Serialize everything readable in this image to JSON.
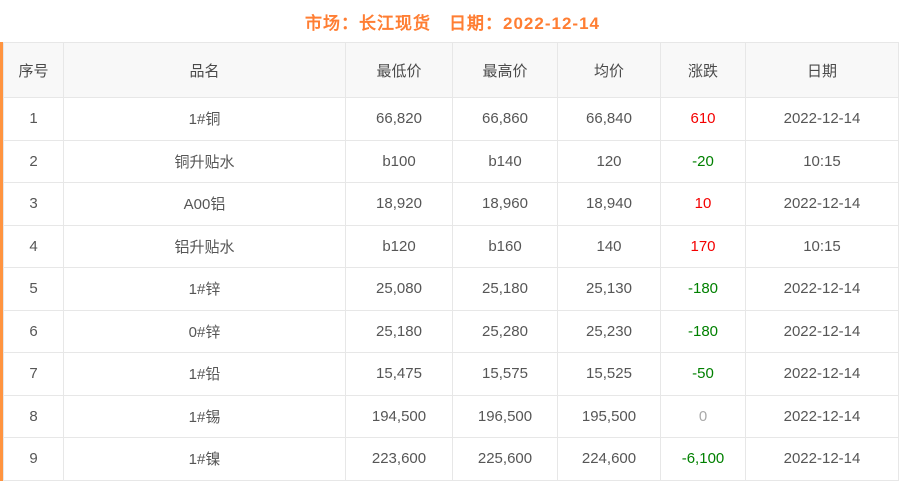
{
  "title": "市场：长江现货　日期：2022-12-14",
  "colors": {
    "accent": "#ff7e33",
    "stripe": "#ff9440",
    "up": "#f40000",
    "down": "#008000",
    "flat": "#a9a9a9",
    "border": "#e7e7e7",
    "headbg": "#f8f8f8"
  },
  "table": {
    "headers": [
      "序号",
      "品名",
      "最低价",
      "最高价",
      "均价",
      "涨跌",
      "日期"
    ],
    "rows": [
      {
        "seq": "1",
        "name": "1#铜",
        "low": "66,820",
        "high": "66,860",
        "avg": "66,840",
        "change": "610",
        "trend": "up",
        "date": "2022-12-14"
      },
      {
        "seq": "2",
        "name": "铜升贴水",
        "low": "b100",
        "high": "b140",
        "avg": "120",
        "change": "-20",
        "trend": "down",
        "date": "10:15"
      },
      {
        "seq": "3",
        "name": "A00铝",
        "low": "18,920",
        "high": "18,960",
        "avg": "18,940",
        "change": "10",
        "trend": "up",
        "date": "2022-12-14"
      },
      {
        "seq": "4",
        "name": "铝升贴水",
        "low": "b120",
        "high": "b160",
        "avg": "140",
        "change": "170",
        "trend": "up",
        "date": "10:15"
      },
      {
        "seq": "5",
        "name": "1#锌",
        "low": "25,080",
        "high": "25,180",
        "avg": "25,130",
        "change": "-180",
        "trend": "down",
        "date": "2022-12-14"
      },
      {
        "seq": "6",
        "name": "0#锌",
        "low": "25,180",
        "high": "25,280",
        "avg": "25,230",
        "change": "-180",
        "trend": "down",
        "date": "2022-12-14"
      },
      {
        "seq": "7",
        "name": "1#铅",
        "low": "15,475",
        "high": "15,575",
        "avg": "15,525",
        "change": "-50",
        "trend": "down",
        "date": "2022-12-14"
      },
      {
        "seq": "8",
        "name": "1#锡",
        "low": "194,500",
        "high": "196,500",
        "avg": "195,500",
        "change": "0",
        "trend": "flat",
        "date": "2022-12-14"
      },
      {
        "seq": "9",
        "name": "1#镍",
        "low": "223,600",
        "high": "225,600",
        "avg": "224,600",
        "change": "-6,100",
        "trend": "down",
        "date": "2022-12-14"
      }
    ]
  }
}
